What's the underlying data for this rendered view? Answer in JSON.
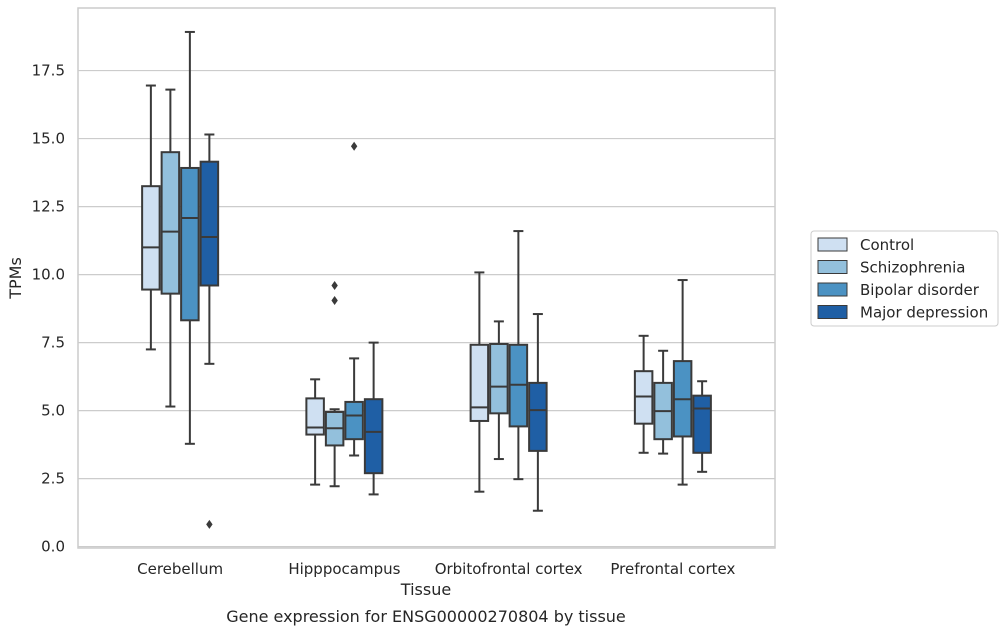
{
  "chart_data": {
    "type": "boxplot",
    "title": "",
    "caption": "Gene expression for ENSG00000270804 by tissue",
    "xlabel": "Tissue",
    "ylabel": "TPMs",
    "ylim": [
      -0.05,
      19.8
    ],
    "yticks": [
      "0.0",
      "2.5",
      "5.0",
      "7.5",
      "10.0",
      "12.5",
      "15.0",
      "17.5"
    ],
    "grid": "horizontal",
    "legend_position": "right",
    "categories": [
      "Cerebellum",
      "Hipppocampus",
      "Orbitofrontal cortex",
      "Prefrontal cortex"
    ],
    "series": [
      {
        "name": "Control",
        "color": "#cfe0f2",
        "boxes": [
          {
            "whislo": 7.25,
            "q1": 9.45,
            "med": 11.0,
            "q3": 13.25,
            "whishi": 16.95,
            "fliers": []
          },
          {
            "whislo": 2.28,
            "q1": 4.12,
            "med": 4.38,
            "q3": 5.45,
            "whishi": 6.15,
            "fliers": []
          },
          {
            "whislo": 2.02,
            "q1": 4.62,
            "med": 5.12,
            "q3": 7.42,
            "whishi": 10.08,
            "fliers": []
          },
          {
            "whislo": 3.45,
            "q1": 4.52,
            "med": 5.52,
            "q3": 6.45,
            "whishi": 7.75,
            "fliers": []
          }
        ]
      },
      {
        "name": "Schizophrenia",
        "color": "#93c0dc",
        "boxes": [
          {
            "whislo": 5.15,
            "q1": 9.3,
            "med": 11.58,
            "q3": 14.5,
            "whishi": 16.8,
            "fliers": []
          },
          {
            "whislo": 2.22,
            "q1": 3.72,
            "med": 4.35,
            "q3": 4.95,
            "whishi": 5.05,
            "fliers": [
              9.05,
              9.6
            ]
          },
          {
            "whislo": 3.22,
            "q1": 4.9,
            "med": 5.88,
            "q3": 7.45,
            "whishi": 8.28,
            "fliers": []
          },
          {
            "whislo": 3.42,
            "q1": 3.95,
            "med": 4.98,
            "q3": 6.02,
            "whishi": 7.2,
            "fliers": []
          }
        ]
      },
      {
        "name": "Bipolar disorder",
        "color": "#4b92c3",
        "boxes": [
          {
            "whislo": 3.78,
            "q1": 8.32,
            "med": 12.08,
            "q3": 13.92,
            "whishi": 18.92,
            "fliers": []
          },
          {
            "whislo": 3.35,
            "q1": 3.95,
            "med": 4.82,
            "q3": 5.32,
            "whishi": 6.92,
            "fliers": [
              14.72
            ]
          },
          {
            "whislo": 2.48,
            "q1": 4.42,
            "med": 5.95,
            "q3": 7.42,
            "whishi": 11.6,
            "fliers": []
          },
          {
            "whislo": 2.28,
            "q1": 4.05,
            "med": 5.42,
            "q3": 6.82,
            "whishi": 9.8,
            "fliers": []
          }
        ]
      },
      {
        "name": "Major depression",
        "color": "#1f5fa5",
        "boxes": [
          {
            "whislo": 6.72,
            "q1": 9.6,
            "med": 11.38,
            "q3": 14.15,
            "whishi": 15.15,
            "fliers": [
              0.82
            ]
          },
          {
            "whislo": 1.92,
            "q1": 2.7,
            "med": 4.22,
            "q3": 5.42,
            "whishi": 7.5,
            "fliers": []
          },
          {
            "whislo": 1.32,
            "q1": 3.52,
            "med": 5.02,
            "q3": 6.02,
            "whishi": 8.55,
            "fliers": []
          },
          {
            "whislo": 2.75,
            "q1": 3.45,
            "med": 5.08,
            "q3": 5.55,
            "whishi": 6.08,
            "fliers": []
          }
        ]
      }
    ]
  }
}
